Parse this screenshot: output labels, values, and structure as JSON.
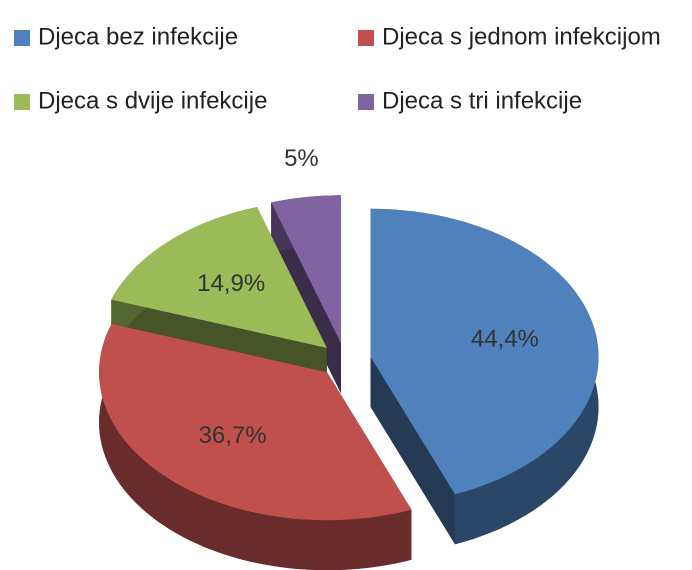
{
  "chart_data": {
    "type": "pie",
    "categories": [
      "Djeca bez infekcije",
      "Djeca s jednom infekcijom",
      "Djeca s dvije infekcije",
      "Djeca s tri infekcije"
    ],
    "values": [
      44.4,
      36.7,
      14.9,
      5
    ],
    "value_labels": [
      "44,4%",
      "36,7%",
      "14,9%",
      "5%"
    ],
    "colors": [
      "#4f81bd",
      "#c0504d",
      "#9bbb59",
      "#8064a2"
    ],
    "legend": "top",
    "exploded": true,
    "three_d": true
  }
}
